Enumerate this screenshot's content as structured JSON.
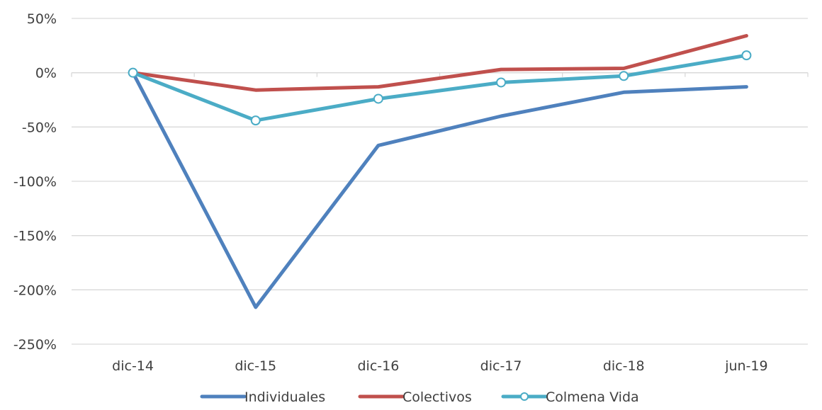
{
  "chart_data": {
    "type": "line",
    "title": "",
    "xlabel": "",
    "ylabel": "",
    "categories": [
      "dic-14",
      "dic-15",
      "dic-16",
      "dic-17",
      "dic-18",
      "jun-19"
    ],
    "ylim": [
      -250,
      50
    ],
    "yticks": [
      50,
      0,
      -50,
      -100,
      -150,
      -200,
      -250
    ],
    "ytick_labels": [
      "50%",
      "0%",
      "-50%",
      "-100%",
      "-150%",
      "-200%",
      "-250%"
    ],
    "grid": true,
    "legend_position": "bottom",
    "series": [
      {
        "name": "Individuales",
        "values": [
          0,
          -216,
          -67,
          -40,
          -18,
          -13
        ],
        "color": "#4F81BD",
        "marker": "none"
      },
      {
        "name": "Colectivos",
        "values": [
          0,
          -16,
          -13,
          3,
          4,
          34
        ],
        "color": "#C0504D",
        "marker": "none"
      },
      {
        "name": "Colmena Vida",
        "values": [
          0,
          -44,
          -24,
          -9,
          -3,
          16
        ],
        "color": "#4BACC6",
        "marker": "circle"
      }
    ]
  }
}
